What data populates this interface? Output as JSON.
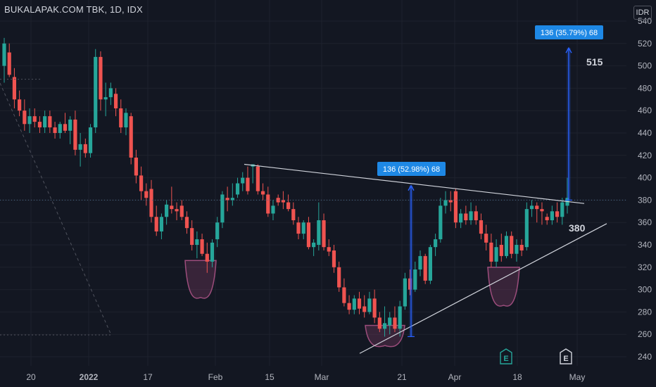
{
  "header": {
    "title": "BUKALAPAK.COM TBK, 1D, IDX",
    "currency": "IDR"
  },
  "colors": {
    "background": "#131722",
    "up": "#26a69a",
    "down": "#ef5350",
    "grid": "#1e222d",
    "trendline": "#d1d4dc",
    "projection": "#2962ff",
    "projection_label_bg": "#1e88e5",
    "cup": "#7e3b63"
  },
  "chart_data": {
    "type": "candlestick",
    "y_axis_ticks": [
      "540",
      "520",
      "500",
      "480",
      "460",
      "440",
      "420",
      "400",
      "380",
      "360",
      "340",
      "320",
      "300",
      "280",
      "260",
      "240"
    ],
    "x_axis_ticks": [
      "20",
      "2022",
      "17",
      "Feb",
      "15",
      "Mar",
      "21",
      "Apr",
      "18",
      "May"
    ],
    "ylim": [
      232,
      545
    ],
    "grid": true,
    "candles": [
      {
        "o": 500,
        "h": 525,
        "l": 485,
        "c": 520
      },
      {
        "o": 512,
        "h": 520,
        "l": 490,
        "c": 492
      },
      {
        "o": 490,
        "h": 498,
        "l": 462,
        "c": 470
      },
      {
        "o": 470,
        "h": 478,
        "l": 455,
        "c": 460
      },
      {
        "o": 460,
        "h": 470,
        "l": 442,
        "c": 448
      },
      {
        "o": 448,
        "h": 462,
        "l": 440,
        "c": 455
      },
      {
        "o": 455,
        "h": 462,
        "l": 445,
        "c": 450
      },
      {
        "o": 450,
        "h": 455,
        "l": 440,
        "c": 445
      },
      {
        "o": 445,
        "h": 460,
        "l": 440,
        "c": 455
      },
      {
        "o": 455,
        "h": 460,
        "l": 440,
        "c": 445
      },
      {
        "o": 445,
        "h": 450,
        "l": 435,
        "c": 440
      },
      {
        "o": 440,
        "h": 450,
        "l": 435,
        "c": 448
      },
      {
        "o": 448,
        "h": 458,
        "l": 440,
        "c": 442
      },
      {
        "o": 442,
        "h": 455,
        "l": 430,
        "c": 452
      },
      {
        "o": 452,
        "h": 460,
        "l": 420,
        "c": 425
      },
      {
        "o": 425,
        "h": 440,
        "l": 410,
        "c": 430
      },
      {
        "o": 430,
        "h": 435,
        "l": 418,
        "c": 422
      },
      {
        "o": 422,
        "h": 448,
        "l": 418,
        "c": 445
      },
      {
        "o": 445,
        "h": 515,
        "l": 440,
        "c": 508
      },
      {
        "o": 508,
        "h": 513,
        "l": 460,
        "c": 470
      },
      {
        "o": 470,
        "h": 485,
        "l": 455,
        "c": 472
      },
      {
        "o": 472,
        "h": 485,
        "l": 465,
        "c": 480
      },
      {
        "o": 475,
        "h": 480,
        "l": 455,
        "c": 462
      },
      {
        "o": 462,
        "h": 470,
        "l": 440,
        "c": 445
      },
      {
        "o": 445,
        "h": 462,
        "l": 438,
        "c": 458
      },
      {
        "o": 455,
        "h": 458,
        "l": 412,
        "c": 418
      },
      {
        "o": 418,
        "h": 425,
        "l": 395,
        "c": 402
      },
      {
        "o": 402,
        "h": 410,
        "l": 380,
        "c": 388
      },
      {
        "o": 388,
        "h": 395,
        "l": 375,
        "c": 382
      },
      {
        "o": 390,
        "h": 398,
        "l": 360,
        "c": 365
      },
      {
        "o": 365,
        "h": 375,
        "l": 348,
        "c": 352
      },
      {
        "o": 352,
        "h": 368,
        "l": 345,
        "c": 365
      },
      {
        "o": 365,
        "h": 380,
        "l": 358,
        "c": 376
      },
      {
        "o": 375,
        "h": 392,
        "l": 368,
        "c": 372
      },
      {
        "o": 372,
        "h": 378,
        "l": 362,
        "c": 370
      },
      {
        "o": 375,
        "h": 380,
        "l": 362,
        "c": 365
      },
      {
        "o": 365,
        "h": 370,
        "l": 350,
        "c": 355
      },
      {
        "o": 355,
        "h": 362,
        "l": 335,
        "c": 340
      },
      {
        "o": 340,
        "h": 352,
        "l": 328,
        "c": 345
      },
      {
        "o": 345,
        "h": 350,
        "l": 330,
        "c": 332
      },
      {
        "o": 332,
        "h": 342,
        "l": 315,
        "c": 325
      },
      {
        "o": 325,
        "h": 345,
        "l": 320,
        "c": 342
      },
      {
        "o": 345,
        "h": 365,
        "l": 338,
        "c": 360
      },
      {
        "o": 360,
        "h": 388,
        "l": 355,
        "c": 385
      },
      {
        "o": 382,
        "h": 392,
        "l": 370,
        "c": 380
      },
      {
        "o": 380,
        "h": 395,
        "l": 375,
        "c": 382
      },
      {
        "o": 385,
        "h": 400,
        "l": 382,
        "c": 395
      },
      {
        "o": 395,
        "h": 405,
        "l": 388,
        "c": 400
      },
      {
        "o": 400,
        "h": 410,
        "l": 385,
        "c": 388
      },
      {
        "o": 410,
        "h": 412,
        "l": 395,
        "c": 412
      },
      {
        "o": 410,
        "h": 412,
        "l": 385,
        "c": 388
      },
      {
        "o": 388,
        "h": 395,
        "l": 380,
        "c": 385
      },
      {
        "o": 385,
        "h": 392,
        "l": 365,
        "c": 368
      },
      {
        "o": 368,
        "h": 380,
        "l": 362,
        "c": 375
      },
      {
        "o": 382,
        "h": 385,
        "l": 375,
        "c": 378
      },
      {
        "o": 380,
        "h": 388,
        "l": 372,
        "c": 378
      },
      {
        "o": 378,
        "h": 385,
        "l": 370,
        "c": 372
      },
      {
        "o": 372,
        "h": 378,
        "l": 358,
        "c": 362
      },
      {
        "o": 360,
        "h": 365,
        "l": 345,
        "c": 350
      },
      {
        "o": 350,
        "h": 362,
        "l": 345,
        "c": 360
      },
      {
        "o": 360,
        "h": 365,
        "l": 336,
        "c": 338
      },
      {
        "o": 338,
        "h": 345,
        "l": 330,
        "c": 342
      },
      {
        "o": 340,
        "h": 378,
        "l": 335,
        "c": 362
      },
      {
        "o": 362,
        "h": 368,
        "l": 335,
        "c": 338
      },
      {
        "o": 338,
        "h": 345,
        "l": 330,
        "c": 334
      },
      {
        "o": 335,
        "h": 340,
        "l": 315,
        "c": 320
      },
      {
        "o": 320,
        "h": 325,
        "l": 298,
        "c": 302
      },
      {
        "o": 302,
        "h": 310,
        "l": 285,
        "c": 288
      },
      {
        "o": 288,
        "h": 295,
        "l": 278,
        "c": 282
      },
      {
        "o": 282,
        "h": 295,
        "l": 278,
        "c": 292
      },
      {
        "o": 292,
        "h": 298,
        "l": 278,
        "c": 283
      },
      {
        "o": 285,
        "h": 295,
        "l": 275,
        "c": 280
      },
      {
        "o": 280,
        "h": 298,
        "l": 278,
        "c": 292
      },
      {
        "o": 292,
        "h": 300,
        "l": 270,
        "c": 275
      },
      {
        "o": 275,
        "h": 280,
        "l": 262,
        "c": 265
      },
      {
        "o": 265,
        "h": 285,
        "l": 258,
        "c": 270
      },
      {
        "o": 268,
        "h": 280,
        "l": 260,
        "c": 275
      },
      {
        "o": 275,
        "h": 285,
        "l": 262,
        "c": 265
      },
      {
        "o": 265,
        "h": 290,
        "l": 258,
        "c": 285
      },
      {
        "o": 285,
        "h": 315,
        "l": 282,
        "c": 310
      },
      {
        "o": 310,
        "h": 318,
        "l": 295,
        "c": 300
      },
      {
        "o": 300,
        "h": 325,
        "l": 298,
        "c": 318
      },
      {
        "o": 318,
        "h": 335,
        "l": 312,
        "c": 330
      },
      {
        "o": 330,
        "h": 332,
        "l": 305,
        "c": 308
      },
      {
        "o": 308,
        "h": 340,
        "l": 305,
        "c": 338
      },
      {
        "o": 338,
        "h": 350,
        "l": 330,
        "c": 345
      },
      {
        "o": 345,
        "h": 382,
        "l": 342,
        "c": 375
      },
      {
        "o": 375,
        "h": 388,
        "l": 368,
        "c": 380
      },
      {
        "o": 380,
        "h": 388,
        "l": 370,
        "c": 378
      },
      {
        "o": 388,
        "h": 390,
        "l": 355,
        "c": 360
      },
      {
        "o": 360,
        "h": 372,
        "l": 355,
        "c": 368
      },
      {
        "o": 368,
        "h": 375,
        "l": 358,
        "c": 362
      },
      {
        "o": 362,
        "h": 378,
        "l": 358,
        "c": 370
      },
      {
        "o": 370,
        "h": 375,
        "l": 358,
        "c": 362
      },
      {
        "o": 362,
        "h": 368,
        "l": 345,
        "c": 350
      },
      {
        "o": 350,
        "h": 358,
        "l": 335,
        "c": 342
      },
      {
        "o": 342,
        "h": 350,
        "l": 320,
        "c": 325
      },
      {
        "o": 325,
        "h": 345,
        "l": 320,
        "c": 338
      },
      {
        "o": 340,
        "h": 350,
        "l": 325,
        "c": 330
      },
      {
        "o": 330,
        "h": 352,
        "l": 328,
        "c": 348
      },
      {
        "o": 348,
        "h": 352,
        "l": 328,
        "c": 332
      },
      {
        "o": 332,
        "h": 345,
        "l": 325,
        "c": 340
      },
      {
        "o": 340,
        "h": 345,
        "l": 330,
        "c": 335
      },
      {
        "o": 338,
        "h": 378,
        "l": 335,
        "c": 372
      },
      {
        "o": 372,
        "h": 380,
        "l": 365,
        "c": 375
      },
      {
        "o": 375,
        "h": 378,
        "l": 360,
        "c": 372
      },
      {
        "o": 372,
        "h": 378,
        "l": 358,
        "c": 370
      },
      {
        "o": 365,
        "h": 368,
        "l": 358,
        "c": 362
      },
      {
        "o": 362,
        "h": 375,
        "l": 358,
        "c": 370
      },
      {
        "o": 370,
        "h": 378,
        "l": 360,
        "c": 365
      },
      {
        "o": 365,
        "h": 382,
        "l": 358,
        "c": 378
      },
      {
        "o": 375,
        "h": 400,
        "l": 368,
        "c": 382
      }
    ],
    "annotations": {
      "projection_1_label": "136 (52.98%) 68",
      "projection_2_label": "136 (35.79%) 68",
      "target_label": "515",
      "breakout_label": "380"
    }
  }
}
